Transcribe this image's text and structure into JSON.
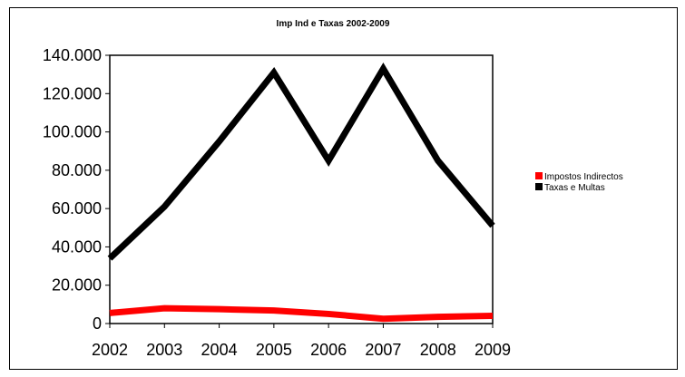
{
  "chart_data": {
    "type": "line",
    "title": "Imp Ind e Taxas 2002-2009",
    "xlabel": "",
    "ylabel": "",
    "x": [
      "2002",
      "2003",
      "2004",
      "2005",
      "2006",
      "2007",
      "2008",
      "2009"
    ],
    "ylim": [
      0,
      140000
    ],
    "yticks": [
      0,
      20000,
      40000,
      60000,
      80000,
      100000,
      120000,
      140000
    ],
    "ytick_labels": [
      "0",
      "20.000",
      "40.000",
      "60.000",
      "80.000",
      "100.000",
      "120.000",
      "140.000"
    ],
    "grid": false,
    "legend_position": "right",
    "series": [
      {
        "name": "Impostos Indirectos",
        "color": "#ff0000",
        "values": [
          5500,
          8000,
          7500,
          6800,
          5000,
          2500,
          3500,
          4000
        ]
      },
      {
        "name": "Taxas e Multas",
        "color": "#000000",
        "values": [
          34000,
          61000,
          95000,
          131000,
          85000,
          133000,
          85000,
          51000
        ]
      }
    ]
  }
}
